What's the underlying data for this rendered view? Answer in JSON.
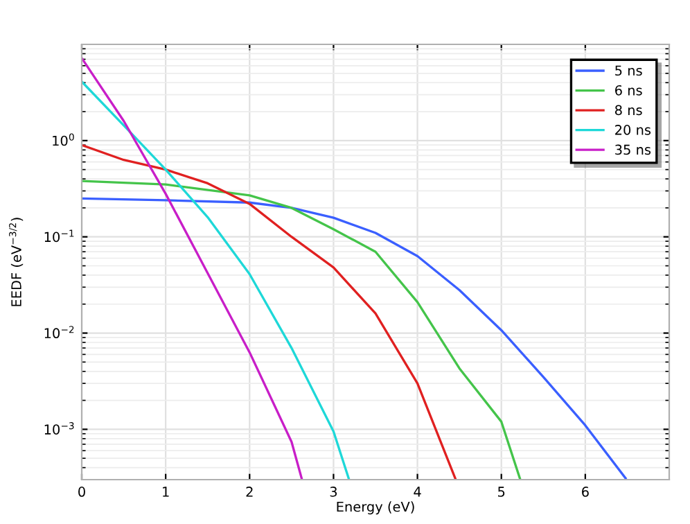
{
  "chart_data": {
    "type": "line",
    "xlabel": "Energy (eV)",
    "ylabel": "EEDF (eV$^{−3/2}$)",
    "log": "y",
    "xlim": [
      0,
      7
    ],
    "xticks": [
      0,
      1,
      2,
      3,
      4,
      5,
      6
    ],
    "ylim": [
      0.0003,
      10
    ],
    "yticks": [
      {
        "value": 0.001,
        "label": "10$^{−3}$"
      },
      {
        "value": 0.01,
        "label": "10$^{−2}$"
      },
      {
        "value": 0.1,
        "label": "10$^{−1}$"
      },
      {
        "value": 1,
        "label": "10$^{0}$"
      }
    ],
    "grid": true,
    "legend": "top right",
    "line_style": "solid",
    "marker": "none",
    "series": [
      {
        "name": "5 ns",
        "color": "#3a5fff",
        "x": [
          0,
          1,
          2,
          2.5,
          3,
          3.5,
          4,
          4.5,
          5,
          5.5,
          6,
          6.48
        ],
        "values": [
          0.25,
          0.24,
          0.227,
          0.2,
          0.158,
          0.11,
          0.063,
          0.028,
          0.0107,
          0.0035,
          0.0011,
          0.00031
        ]
      },
      {
        "name": "6 ns",
        "color": "#44c44a",
        "x": [
          0,
          1,
          2,
          2.5,
          3,
          3.5,
          4,
          4.5,
          5,
          5.22
        ],
        "values": [
          0.38,
          0.35,
          0.27,
          0.2,
          0.12,
          0.07,
          0.021,
          0.0043,
          0.0012,
          0.00031
        ]
      },
      {
        "name": "8 ns",
        "color": "#e02020",
        "x": [
          0,
          0.5,
          1,
          1.5,
          2,
          2.5,
          3,
          3.5,
          4,
          4.45
        ],
        "values": [
          0.9,
          0.63,
          0.5,
          0.36,
          0.22,
          0.1,
          0.048,
          0.016,
          0.003,
          0.00031
        ]
      },
      {
        "name": "20 ns",
        "color": "#1ed8d8",
        "x": [
          0,
          0.5,
          1,
          1.5,
          2,
          2.5,
          3,
          3.18
        ],
        "values": [
          4.1,
          1.44,
          0.5,
          0.16,
          0.041,
          0.007,
          0.00095,
          0.00031
        ]
      },
      {
        "name": "35 ns",
        "color": "#c81ec8",
        "x": [
          0,
          0.5,
          1,
          1.5,
          2,
          2.5,
          2.62
        ],
        "values": [
          7.2,
          1.6,
          0.28,
          0.042,
          0.0063,
          0.00074,
          0.00031
        ]
      }
    ]
  }
}
